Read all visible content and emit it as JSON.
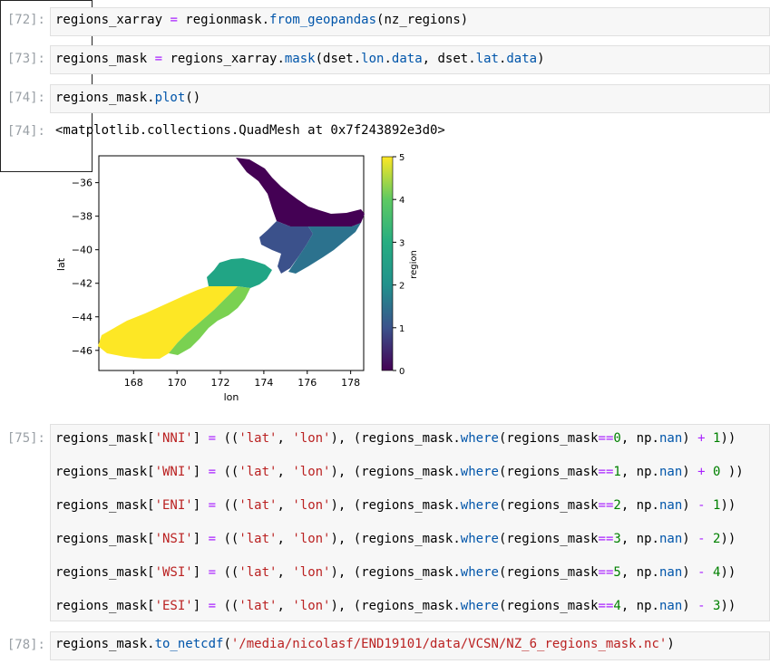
{
  "cells": {
    "c72": {
      "prompt": "[72]:",
      "code": "regions_xarray = regionmask.from_geopandas(nz_regions)"
    },
    "c73": {
      "prompt": "[73]:",
      "code": "regions_mask = regions_xarray.mask(dset.lon.data, dset.lat.data)"
    },
    "c74": {
      "prompt": "[74]:",
      "code": "regions_mask.plot()",
      "out_prompt": "[74]:",
      "output": "<matplotlib.collections.QuadMesh at 0x7f243892e3d0>"
    },
    "c75": {
      "prompt": "[75]:",
      "lines": [
        "regions_mask['NNI'] = (('lat', 'lon'), (regions_mask.where(regions_mask==0, np.nan) + 1))",
        "regions_mask['WNI'] = (('lat', 'lon'), (regions_mask.where(regions_mask==1, np.nan) + 0 ))",
        "regions_mask['ENI'] = (('lat', 'lon'), (regions_mask.where(regions_mask==2, np.nan) - 1))",
        "regions_mask['NSI'] = (('lat', 'lon'), (regions_mask.where(regions_mask==3, np.nan) - 2))",
        "regions_mask['WSI'] = (('lat', 'lon'), (regions_mask.where(regions_mask==5, np.nan) - 4))",
        "regions_mask['ESI'] = (('lat', 'lon'), (regions_mask.where(regions_mask==4, np.nan) - 3))"
      ]
    },
    "c78": {
      "prompt": "[78]:",
      "code": "regions_mask.to_netcdf('/media/nicolasf/END19101/data/VCSN/NZ_6_regions_mask.nc')"
    }
  },
  "chart_data": {
    "type": "heatmap",
    "xlabel": "lon",
    "ylabel": "lat",
    "xticks": [
      "168",
      "170",
      "172",
      "174",
      "176",
      "178"
    ],
    "yticks": [
      "-36",
      "-38",
      "-40",
      "-42",
      "-44",
      "-46"
    ],
    "xlim": [
      166.4,
      178.6
    ],
    "ylim": [
      -47.2,
      -34.4
    ],
    "colorbar_label": "region",
    "colorbar_ticks": [
      "0",
      "1",
      "2",
      "3",
      "4",
      "5"
    ],
    "colorbar_range": [
      0,
      5
    ],
    "colormap": "viridis",
    "colors": [
      "#440154",
      "#3b518b",
      "#2c728e",
      "#21a585",
      "#7ad151",
      "#fde725"
    ],
    "regions": [
      {
        "value": 0,
        "label": "NNI"
      },
      {
        "value": 1,
        "label": "WNI"
      },
      {
        "value": 2,
        "label": "ENI"
      },
      {
        "value": 3,
        "label": "NSI"
      },
      {
        "value": 4,
        "label": "ESI"
      },
      {
        "value": 5,
        "label": "WSI"
      }
    ]
  }
}
